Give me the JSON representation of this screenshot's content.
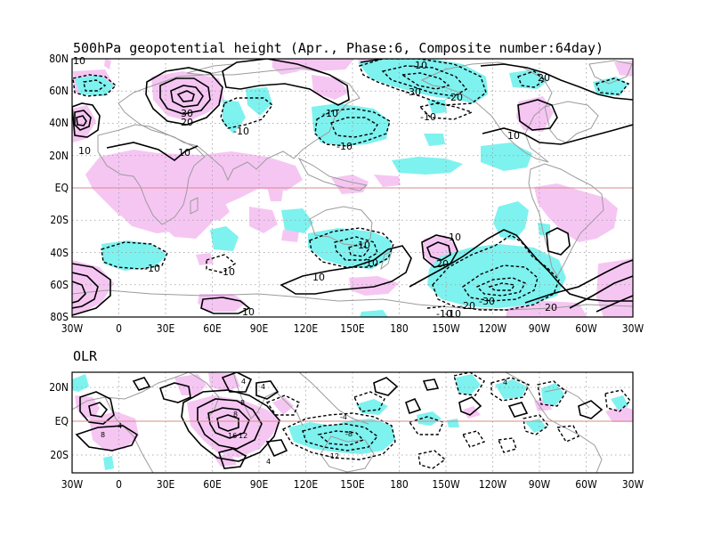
{
  "chart_data": [
    {
      "type": "contour-map",
      "title": "500hPa geopotential height (Apr., Phase:6, Composite number:64day)",
      "x_tick_labels": [
        "30W",
        "0",
        "30E",
        "60E",
        "90E",
        "120E",
        "150E",
        "180",
        "150W",
        "120W",
        "90W",
        "60W",
        "30W"
      ],
      "y_tick_labels": [
        "80N",
        "60N",
        "40N",
        "20N",
        "EQ",
        "20S",
        "40S",
        "60S",
        "80S"
      ],
      "xlim_lon": [
        -30,
        330
      ],
      "ylim_lat": [
        -80,
        80
      ],
      "contour_interval": 10,
      "shading": {
        "positive": "#f6c6f3",
        "negative": "#7ef2ef"
      },
      "contour_labels": [
        "-10",
        "-30",
        "-20",
        "-10",
        "20",
        "10",
        "30",
        "20",
        "10",
        "-10",
        "-10",
        "-10",
        "10",
        "-10",
        "-10",
        "-10",
        "-10",
        "-10",
        "20",
        "10",
        "-10",
        "-20",
        "-30",
        "20",
        "-10",
        "10",
        "-10"
      ]
    },
    {
      "type": "contour-map",
      "title": "OLR",
      "x_tick_labels": [
        "30W",
        "0",
        "30E",
        "60E",
        "90E",
        "120E",
        "150E",
        "180",
        "150W",
        "120W",
        "90W",
        "60W",
        "30W"
      ],
      "y_tick_labels": [
        "20N",
        "EQ",
        "20S"
      ],
      "xlim_lon": [
        -30,
        330
      ],
      "ylim_lat": [
        -30,
        30
      ],
      "contour_interval": 4,
      "shading": {
        "positive": "#f6c6f3",
        "negative": "#7ef2ef"
      },
      "contour_labels": [
        "4",
        "8",
        "8",
        "4",
        "8",
        "16",
        "12",
        "4",
        "4",
        "-4",
        "-8",
        "-12",
        "4"
      ]
    }
  ],
  "colors": {
    "eq_line": "#d98b8b",
    "coast": "#9b9b9b",
    "grid": "#9a9a9a"
  }
}
